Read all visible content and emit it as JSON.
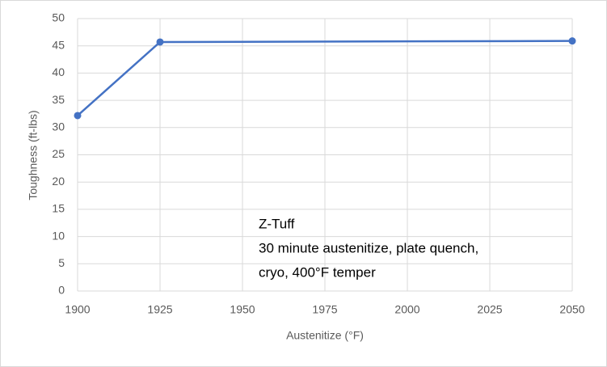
{
  "chart_data": {
    "type": "line",
    "x_label": "Austenitize (°F)",
    "y_label": "Toughness (ft-lbs)",
    "annotation": [
      "Z-Tuff",
      "30 minute austenitize, plate quench,",
      "cryo, 400°F temper"
    ],
    "x": [
      1900,
      1925,
      2050
    ],
    "series": [
      {
        "name": "Z-Tuff",
        "color": "#4472c4",
        "values": [
          32.2,
          45.7,
          45.9
        ]
      }
    ],
    "xlim": [
      1900,
      2050
    ],
    "xticks": [
      1900,
      1925,
      1950,
      1975,
      2000,
      2025,
      2050
    ],
    "ylim": [
      0,
      50
    ],
    "yticks": [
      0,
      5,
      10,
      15,
      20,
      25,
      30,
      35,
      40,
      45,
      50
    ],
    "grid": true
  }
}
